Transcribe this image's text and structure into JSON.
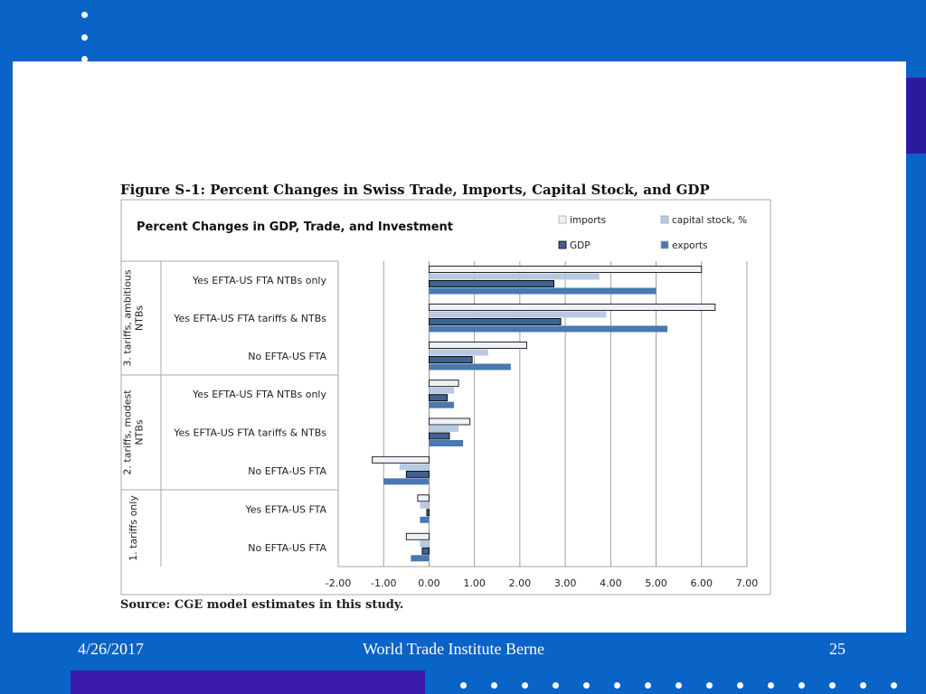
{
  "figure_caption": "Figure S-1: Percent Changes in Swiss Trade, Imports, Capital Stock, and GDP",
  "source": "Source: CGE model estimates in this study.",
  "footer": {
    "date": "4/26/2017",
    "center": "World Trade Institute Berne",
    "page": "25"
  },
  "colors": {
    "background": "#0a63c6",
    "accent": "#3a1aa8",
    "imports": "#eef2f8",
    "capital_stock": "#b8c9e2",
    "gdp": "#3f6291",
    "exports": "#4a78b0"
  },
  "chart_data": {
    "type": "bar",
    "orientation": "horizontal",
    "title": "Percent Changes in GDP, Trade, and Investment",
    "groups": [
      {
        "label": "3. tariffs, ambitious NTBs",
        "label_lines": [
          "3. tariffs, ambitious",
          "NTBs"
        ],
        "categories": [
          "Yes EFTA-US FTA NTBs only",
          "Yes EFTA-US FTA tariffs & NTBs",
          "No EFTA-US FTA"
        ]
      },
      {
        "label": "2. tariffs, modest NTBs",
        "label_lines": [
          "2. tariffs, modest",
          "NTBs"
        ],
        "categories": [
          "Yes EFTA-US FTA NTBs only",
          "Yes EFTA-US FTA tariffs & NTBs",
          "No EFTA-US FTA"
        ]
      },
      {
        "label": "1. tariffs only",
        "label_lines": [
          "1. tariffs only"
        ],
        "categories": [
          "Yes EFTA-US FTA",
          "No EFTA-US FTA"
        ]
      }
    ],
    "series": [
      {
        "name": "imports",
        "values": [
          6.0,
          6.3,
          2.15,
          0.65,
          0.9,
          -1.25,
          -0.25,
          -0.5
        ]
      },
      {
        "name": "capital stock, %",
        "values": [
          3.75,
          3.9,
          1.3,
          0.55,
          0.65,
          -0.65,
          -0.2,
          -0.2
        ]
      },
      {
        "name": "GDP",
        "values": [
          2.75,
          2.9,
          0.95,
          0.4,
          0.45,
          -0.5,
          -0.05,
          -0.15
        ]
      },
      {
        "name": "exports",
        "values": [
          5.0,
          5.25,
          1.8,
          0.55,
          0.75,
          -1.0,
          -0.2,
          -0.4
        ]
      }
    ],
    "xlim": [
      -2.0,
      7.0
    ],
    "xticks": [
      "-2.00",
      "-1.00",
      "0.00",
      "1.00",
      "2.00",
      "3.00",
      "4.00",
      "5.00",
      "6.00",
      "7.00"
    ],
    "grid": true,
    "legend_position": "top-right"
  }
}
